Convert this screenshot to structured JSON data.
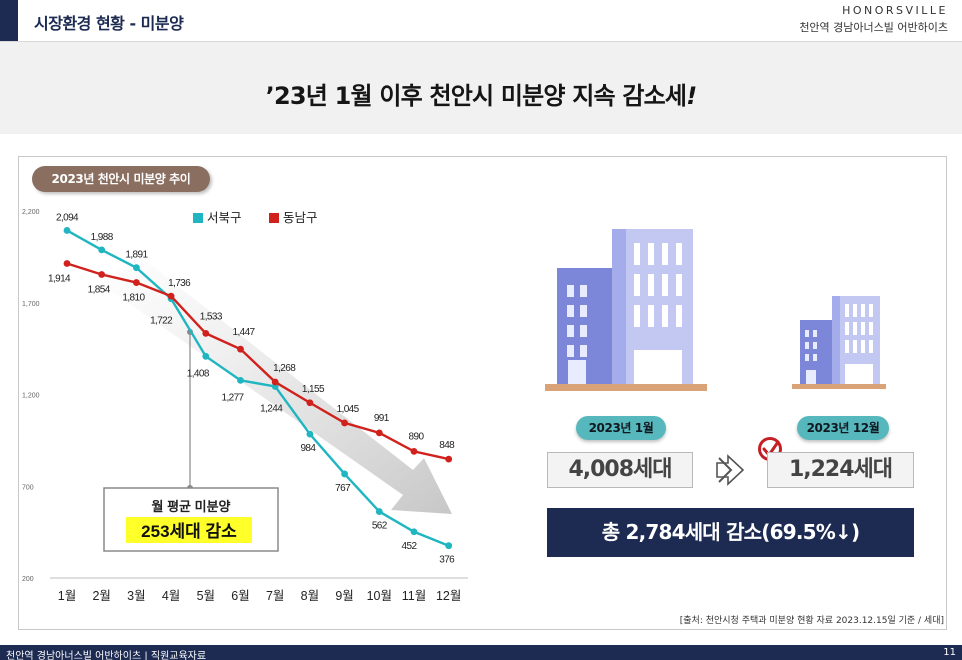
{
  "header": {
    "section_title": "시장환경 현황 - 미분양",
    "brand_en": "HONORSVILLE",
    "brand_ko": "천안역 경남아너스빌 어반하이츠"
  },
  "headline": "’23년 1월 이후 천안시 미분양 지속 감소세",
  "headline_mark": "!",
  "chart_label": "2023년 천안시 미분양 추이",
  "chart_data": {
    "type": "line",
    "categories": [
      "1월",
      "2월",
      "3월",
      "4월",
      "5월",
      "6월",
      "7월",
      "8월",
      "9월",
      "10월",
      "11월",
      "12월"
    ],
    "y_ticks": [
      "2,200",
      "1,700",
      "1,200",
      "700",
      "200"
    ],
    "ylim": [
      200,
      2200
    ],
    "grid": false,
    "legend_position": "top",
    "series": [
      {
        "name": "서북구",
        "color": "#1fb5c1",
        "values": [
          2094,
          1988,
          1891,
          1722,
          1408,
          1277,
          1244,
          984,
          767,
          562,
          452,
          376
        ],
        "labels": [
          "2,094",
          "1,988",
          "1,891",
          "1,722",
          "1,408",
          "1,277",
          "1,244",
          "984",
          "767",
          "562",
          "452",
          "376"
        ]
      },
      {
        "name": "동남구",
        "color": "#d0211d",
        "values": [
          1914,
          1854,
          1810,
          1736,
          1533,
          1447,
          1268,
          1155,
          1045,
          991,
          890,
          848
        ],
        "labels": [
          "1,914",
          "1,854",
          "1,810",
          "1,736",
          "1,533",
          "1,447",
          "1,268",
          "1,155",
          "1,045",
          "991",
          "890",
          "848"
        ]
      }
    ],
    "annotation": {
      "title": "월 평균 미분양",
      "value": "253세대 감소"
    }
  },
  "comparison": {
    "before": {
      "label": "2023년 1월",
      "value": "4,008세대"
    },
    "after": {
      "label": "2023년 12월",
      "value": "1,224세대"
    },
    "total": "총 2,784세대 감소(69.5%↓)",
    "arrow_icon": "double-chevron-right-icon",
    "check_icon": "check-icon"
  },
  "source": "[출처: 천안시청 주택과 미분양 현황 자료 2023.12.15일 기준 / 세대]",
  "footer": {
    "text": "천안역 경남아너스빌 어반하이츠 | 직원교육자료",
    "page": "11"
  },
  "colors": {
    "navy": "#1d2b53",
    "teal": "#1fb5c1",
    "red": "#d0211d",
    "badge": "#56b8bd",
    "label_brown": "#8a6e60"
  }
}
